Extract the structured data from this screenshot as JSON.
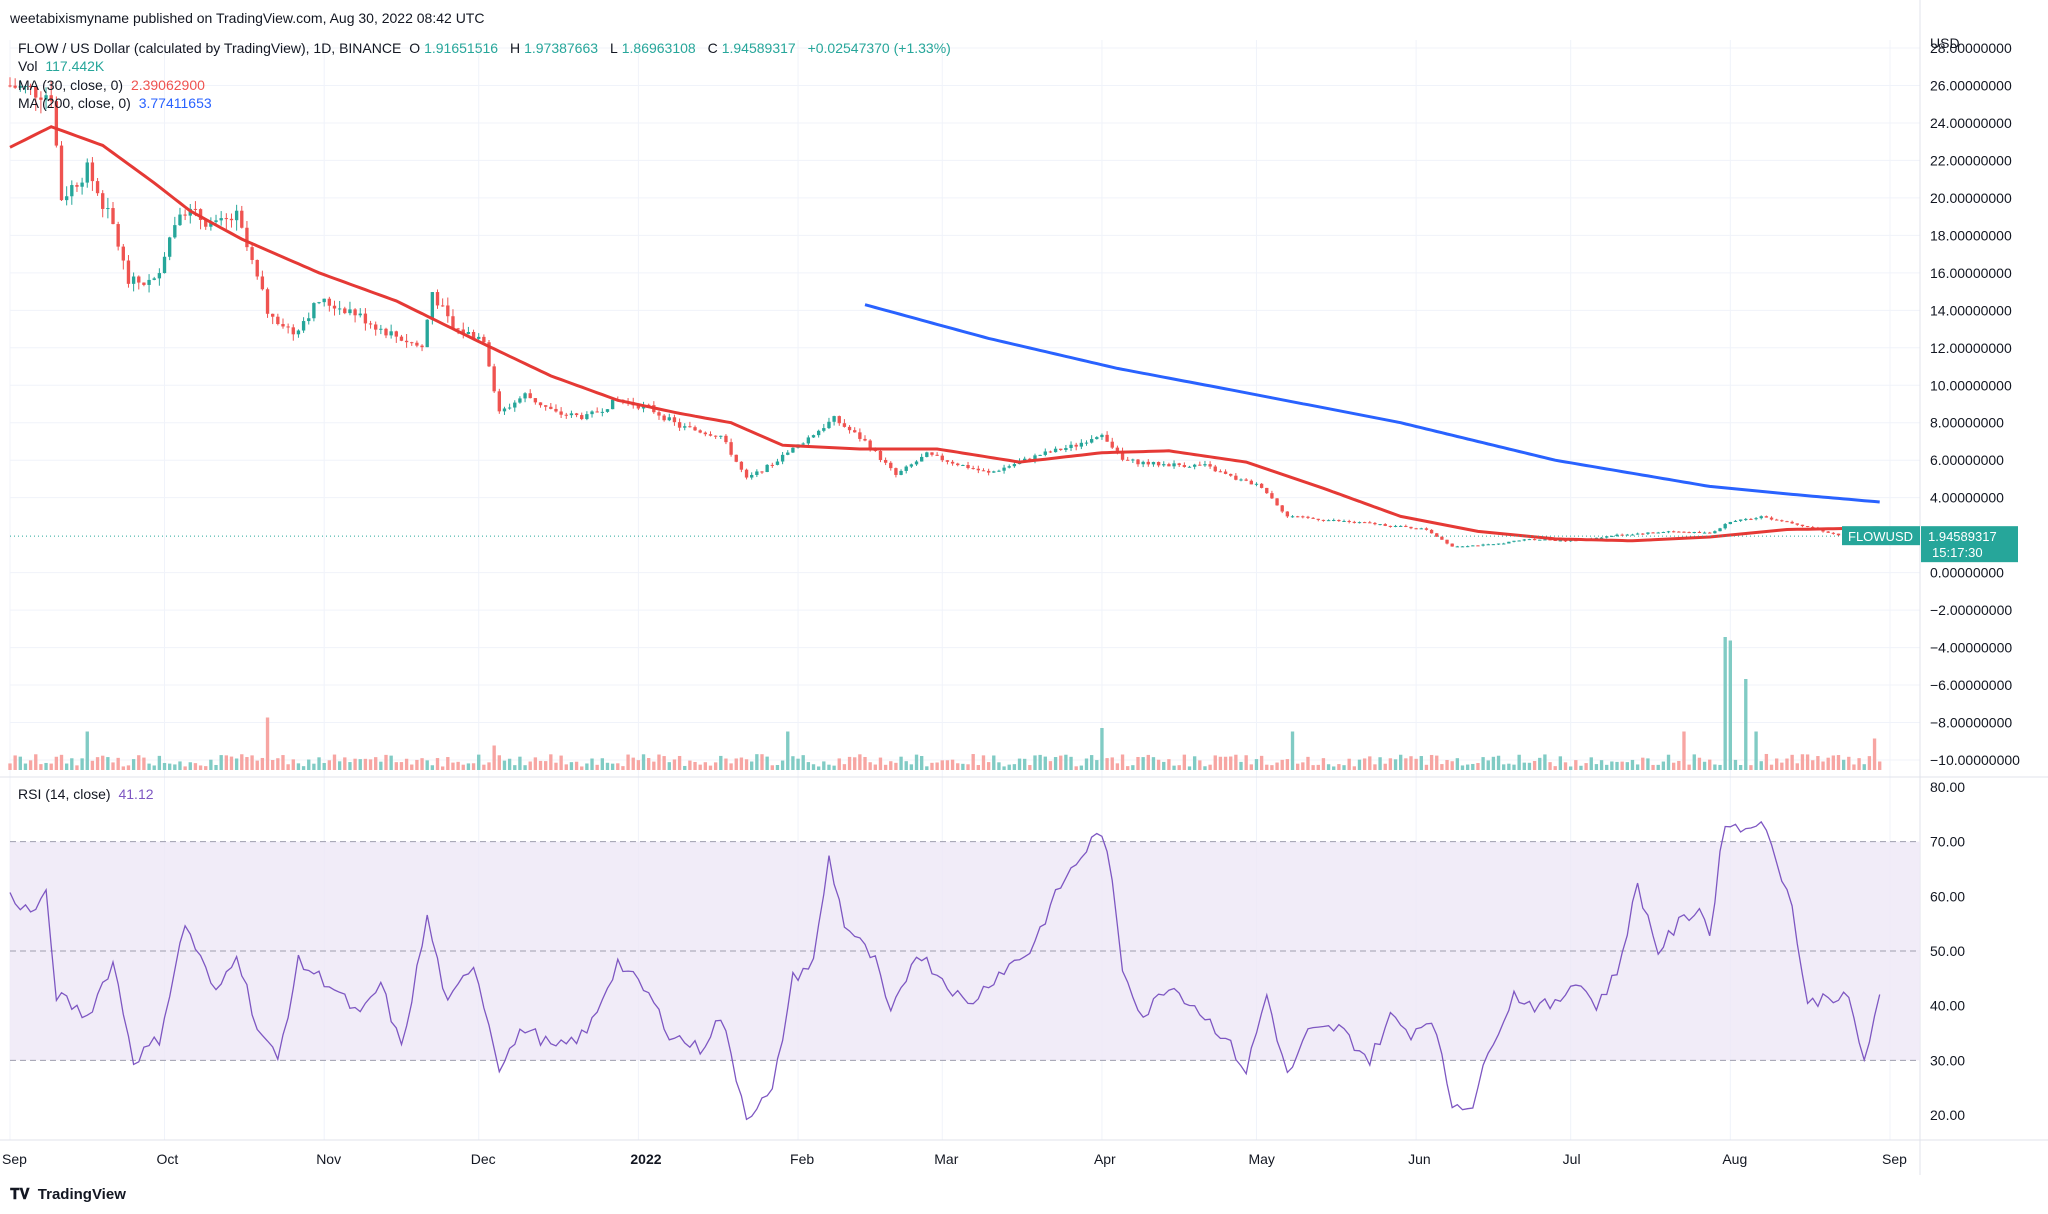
{
  "publisher_line": "weetabixismyname published on TradingView.com, Aug 30, 2022 08:42 UTC",
  "legend": {
    "symbol": "FLOW / US Dollar (calculated by TradingView), 1D, BINANCE",
    "o_label": "O",
    "o_value": "1.91651516",
    "h_label": "H",
    "h_value": "1.97387663",
    "l_label": "L",
    "l_value": "1.86963108",
    "c_label": "C",
    "c_value": "1.94589317",
    "change": "+0.02547370 (+1.33%)",
    "vol_label": "Vol",
    "vol_value": "117.442K",
    "ma30_label": "MA (30, close, 0)",
    "ma30_value": "2.39062900",
    "ma200_label": "MA (200, close, 0)",
    "ma200_value": "3.77411653",
    "rsi_label": "RSI (14, close)",
    "rsi_value": "41.12"
  },
  "price_axis": {
    "currency": "USD",
    "ticks": [
      "28.00000000",
      "26.00000000",
      "24.00000000",
      "22.00000000",
      "20.00000000",
      "18.00000000",
      "16.00000000",
      "14.00000000",
      "12.00000000",
      "10.00000000",
      "8.00000000",
      "6.00000000",
      "4.00000000",
      "0.00000000",
      "−2.00000000",
      "−4.00000000",
      "−6.00000000",
      "−8.00000000",
      "−10.00000000"
    ],
    "tick_values": [
      28,
      26,
      24,
      22,
      20,
      18,
      16,
      14,
      12,
      10,
      8,
      6,
      4,
      0,
      -2,
      -4,
      -6,
      -8,
      -10
    ]
  },
  "last_price_badge": {
    "symbol": "FLOWUSD",
    "price": "1.94589317",
    "countdown": "15:17:30"
  },
  "rsi_axis": {
    "ticks": [
      "80.00",
      "70.00",
      "60.00",
      "50.00",
      "40.00",
      "30.00",
      "20.00"
    ],
    "tick_values": [
      80,
      70,
      60,
      50,
      40,
      30,
      20
    ]
  },
  "time_axis": {
    "labels": [
      "Sep",
      "Oct",
      "Nov",
      "Dec",
      "2022",
      "Feb",
      "Mar",
      "Apr",
      "May",
      "Jun",
      "Jul",
      "Aug",
      "Sep"
    ],
    "label_days": [
      0,
      30,
      61,
      91,
      122,
      153,
      181,
      212,
      242,
      273,
      303,
      334,
      365
    ]
  },
  "brand": "TradingView",
  "colors": {
    "up": "#26a69a",
    "down": "#ef5350",
    "ma30": "#e53935",
    "ma200": "#2962ff",
    "rsi": "#7e57c2",
    "rsi_band": "#ede7f6",
    "volume_up": "#80cbc4",
    "volume_down": "#f7a5a2",
    "last_price": "#26a69a"
  },
  "chart_data": {
    "type": "candlestick",
    "title": "FLOW / US Dollar (calculated by TradingView), 1D, BINANCE",
    "x_range": [
      "2021-09-01",
      "2022-08-30"
    ],
    "ylim": [
      -10,
      28
    ],
    "price_anchors": [
      {
        "day": 0,
        "close": 26.0
      },
      {
        "day": 8,
        "close": 25.5
      },
      {
        "day": 10,
        "close": 20.0
      },
      {
        "day": 15,
        "close": 21.5
      },
      {
        "day": 20,
        "close": 18.5
      },
      {
        "day": 23,
        "close": 15.5
      },
      {
        "day": 28,
        "close": 15.5
      },
      {
        "day": 33,
        "close": 19.5
      },
      {
        "day": 40,
        "close": 18.5
      },
      {
        "day": 44,
        "close": 19.0
      },
      {
        "day": 50,
        "close": 14.0
      },
      {
        "day": 55,
        "close": 12.8
      },
      {
        "day": 60,
        "close": 14.5
      },
      {
        "day": 66,
        "close": 14.0
      },
      {
        "day": 72,
        "close": 13.0
      },
      {
        "day": 80,
        "close": 12.0
      },
      {
        "day": 82,
        "close": 15.0
      },
      {
        "day": 86,
        "close": 13.0
      },
      {
        "day": 92,
        "close": 12.5
      },
      {
        "day": 95,
        "close": 8.5
      },
      {
        "day": 100,
        "close": 9.5
      },
      {
        "day": 106,
        "close": 8.5
      },
      {
        "day": 112,
        "close": 8.3
      },
      {
        "day": 118,
        "close": 9.2
      },
      {
        "day": 124,
        "close": 8.8
      },
      {
        "day": 130,
        "close": 7.8
      },
      {
        "day": 138,
        "close": 7.3
      },
      {
        "day": 143,
        "close": 5.0
      },
      {
        "day": 148,
        "close": 5.8
      },
      {
        "day": 153,
        "close": 6.8
      },
      {
        "day": 160,
        "close": 8.2
      },
      {
        "day": 166,
        "close": 7.0
      },
      {
        "day": 172,
        "close": 5.2
      },
      {
        "day": 178,
        "close": 6.3
      },
      {
        "day": 184,
        "close": 5.8
      },
      {
        "day": 190,
        "close": 5.3
      },
      {
        "day": 200,
        "close": 6.3
      },
      {
        "day": 207,
        "close": 6.8
      },
      {
        "day": 212,
        "close": 7.5
      },
      {
        "day": 216,
        "close": 6.0
      },
      {
        "day": 222,
        "close": 5.8
      },
      {
        "day": 232,
        "close": 5.7
      },
      {
        "day": 238,
        "close": 5.0
      },
      {
        "day": 243,
        "close": 4.6
      },
      {
        "day": 248,
        "close": 3.0
      },
      {
        "day": 256,
        "close": 2.8
      },
      {
        "day": 265,
        "close": 2.6
      },
      {
        "day": 275,
        "close": 2.3
      },
      {
        "day": 280,
        "close": 1.4
      },
      {
        "day": 288,
        "close": 1.5
      },
      {
        "day": 295,
        "close": 1.8
      },
      {
        "day": 303,
        "close": 1.7
      },
      {
        "day": 312,
        "close": 2.0
      },
      {
        "day": 322,
        "close": 2.2
      },
      {
        "day": 330,
        "close": 2.1
      },
      {
        "day": 334,
        "close": 2.7
      },
      {
        "day": 340,
        "close": 3.0
      },
      {
        "day": 347,
        "close": 2.6
      },
      {
        "day": 355,
        "close": 2.0
      },
      {
        "day": 363,
        "close": 1.95
      }
    ],
    "ma30_anchors": [
      {
        "day": 0,
        "close": 22.7
      },
      {
        "day": 8,
        "close": 23.8
      },
      {
        "day": 18,
        "close": 22.8
      },
      {
        "day": 28,
        "close": 20.8
      },
      {
        "day": 35,
        "close": 19.3
      },
      {
        "day": 45,
        "close": 17.8
      },
      {
        "day": 60,
        "close": 16.0
      },
      {
        "day": 75,
        "close": 14.5
      },
      {
        "day": 92,
        "close": 12.2
      },
      {
        "day": 105,
        "close": 10.5
      },
      {
        "day": 118,
        "close": 9.2
      },
      {
        "day": 130,
        "close": 8.5
      },
      {
        "day": 140,
        "close": 8.0
      },
      {
        "day": 150,
        "close": 6.8
      },
      {
        "day": 165,
        "close": 6.6
      },
      {
        "day": 180,
        "close": 6.6
      },
      {
        "day": 196,
        "close": 5.9
      },
      {
        "day": 212,
        "close": 6.4
      },
      {
        "day": 225,
        "close": 6.5
      },
      {
        "day": 240,
        "close": 5.9
      },
      {
        "day": 255,
        "close": 4.5
      },
      {
        "day": 270,
        "close": 3.0
      },
      {
        "day": 285,
        "close": 2.2
      },
      {
        "day": 300,
        "close": 1.8
      },
      {
        "day": 315,
        "close": 1.7
      },
      {
        "day": 330,
        "close": 1.9
      },
      {
        "day": 345,
        "close": 2.3
      },
      {
        "day": 363,
        "close": 2.39
      }
    ],
    "ma200_anchors": [
      {
        "day": 166,
        "close": 14.3
      },
      {
        "day": 190,
        "close": 12.5
      },
      {
        "day": 215,
        "close": 10.9
      },
      {
        "day": 240,
        "close": 9.6
      },
      {
        "day": 270,
        "close": 8.0
      },
      {
        "day": 300,
        "close": 6.0
      },
      {
        "day": 330,
        "close": 4.6
      },
      {
        "day": 345,
        "close": 4.2
      },
      {
        "day": 363,
        "close": 3.77
      }
    ],
    "rsi_anchors": [
      {
        "day": 0,
        "rsi": 60
      },
      {
        "day": 4,
        "rsi": 57
      },
      {
        "day": 7,
        "rsi": 60
      },
      {
        "day": 9,
        "rsi": 42
      },
      {
        "day": 15,
        "rsi": 38
      },
      {
        "day": 20,
        "rsi": 48
      },
      {
        "day": 24,
        "rsi": 30
      },
      {
        "day": 29,
        "rsi": 34
      },
      {
        "day": 34,
        "rsi": 55
      },
      {
        "day": 40,
        "rsi": 42
      },
      {
        "day": 44,
        "rsi": 50
      },
      {
        "day": 48,
        "rsi": 36
      },
      {
        "day": 52,
        "rsi": 30
      },
      {
        "day": 56,
        "rsi": 48
      },
      {
        "day": 62,
        "rsi": 44
      },
      {
        "day": 68,
        "rsi": 38
      },
      {
        "day": 72,
        "rsi": 44
      },
      {
        "day": 76,
        "rsi": 32
      },
      {
        "day": 81,
        "rsi": 56
      },
      {
        "day": 85,
        "rsi": 40
      },
      {
        "day": 90,
        "rsi": 48
      },
      {
        "day": 95,
        "rsi": 29
      },
      {
        "day": 100,
        "rsi": 36
      },
      {
        "day": 106,
        "rsi": 32
      },
      {
        "day": 112,
        "rsi": 35
      },
      {
        "day": 118,
        "rsi": 48
      },
      {
        "day": 124,
        "rsi": 42
      },
      {
        "day": 128,
        "rsi": 35
      },
      {
        "day": 134,
        "rsi": 32
      },
      {
        "day": 138,
        "rsi": 38
      },
      {
        "day": 143,
        "rsi": 20
      },
      {
        "day": 148,
        "rsi": 24
      },
      {
        "day": 152,
        "rsi": 45
      },
      {
        "day": 156,
        "rsi": 48
      },
      {
        "day": 159,
        "rsi": 67
      },
      {
        "day": 162,
        "rsi": 55
      },
      {
        "day": 168,
        "rsi": 48
      },
      {
        "day": 171,
        "rsi": 38
      },
      {
        "day": 176,
        "rsi": 50
      },
      {
        "day": 180,
        "rsi": 46
      },
      {
        "day": 186,
        "rsi": 40
      },
      {
        "day": 192,
        "rsi": 46
      },
      {
        "day": 198,
        "rsi": 50
      },
      {
        "day": 204,
        "rsi": 62
      },
      {
        "day": 210,
        "rsi": 70
      },
      {
        "day": 212,
        "rsi": 72
      },
      {
        "day": 214,
        "rsi": 62
      },
      {
        "day": 216,
        "rsi": 47
      },
      {
        "day": 220,
        "rsi": 38
      },
      {
        "day": 225,
        "rsi": 44
      },
      {
        "day": 230,
        "rsi": 40
      },
      {
        "day": 236,
        "rsi": 34
      },
      {
        "day": 240,
        "rsi": 28
      },
      {
        "day": 244,
        "rsi": 42
      },
      {
        "day": 248,
        "rsi": 27
      },
      {
        "day": 252,
        "rsi": 35
      },
      {
        "day": 258,
        "rsi": 36
      },
      {
        "day": 264,
        "rsi": 30
      },
      {
        "day": 268,
        "rsi": 38
      },
      {
        "day": 272,
        "rsi": 35
      },
      {
        "day": 276,
        "rsi": 38
      },
      {
        "day": 280,
        "rsi": 22
      },
      {
        "day": 284,
        "rsi": 22
      },
      {
        "day": 288,
        "rsi": 34
      },
      {
        "day": 292,
        "rsi": 42
      },
      {
        "day": 296,
        "rsi": 40
      },
      {
        "day": 300,
        "rsi": 40
      },
      {
        "day": 304,
        "rsi": 45
      },
      {
        "day": 308,
        "rsi": 40
      },
      {
        "day": 312,
        "rsi": 46
      },
      {
        "day": 316,
        "rsi": 62
      },
      {
        "day": 320,
        "rsi": 50
      },
      {
        "day": 324,
        "rsi": 55
      },
      {
        "day": 328,
        "rsi": 58
      },
      {
        "day": 330,
        "rsi": 53
      },
      {
        "day": 333,
        "rsi": 74
      },
      {
        "day": 336,
        "rsi": 72
      },
      {
        "day": 339,
        "rsi": 74
      },
      {
        "day": 342,
        "rsi": 70
      },
      {
        "day": 346,
        "rsi": 58
      },
      {
        "day": 349,
        "rsi": 40
      },
      {
        "day": 353,
        "rsi": 42
      },
      {
        "day": 357,
        "rsi": 41
      },
      {
        "day": 360,
        "rsi": 30
      },
      {
        "day": 363,
        "rsi": 41
      }
    ],
    "volume_spikes": [
      {
        "day": 15,
        "vol": 0.55
      },
      {
        "day": 50,
        "vol": 0.75
      },
      {
        "day": 94,
        "vol": 0.35
      },
      {
        "day": 151,
        "vol": 0.55
      },
      {
        "day": 212,
        "vol": 0.6
      },
      {
        "day": 249,
        "vol": 0.55
      },
      {
        "day": 325,
        "vol": 0.55
      },
      {
        "day": 333,
        "vol": 1.9
      },
      {
        "day": 334,
        "vol": 1.85
      },
      {
        "day": 337,
        "vol": 1.3
      },
      {
        "day": 339,
        "vol": 0.55
      },
      {
        "day": 362,
        "vol": 0.45
      }
    ]
  }
}
